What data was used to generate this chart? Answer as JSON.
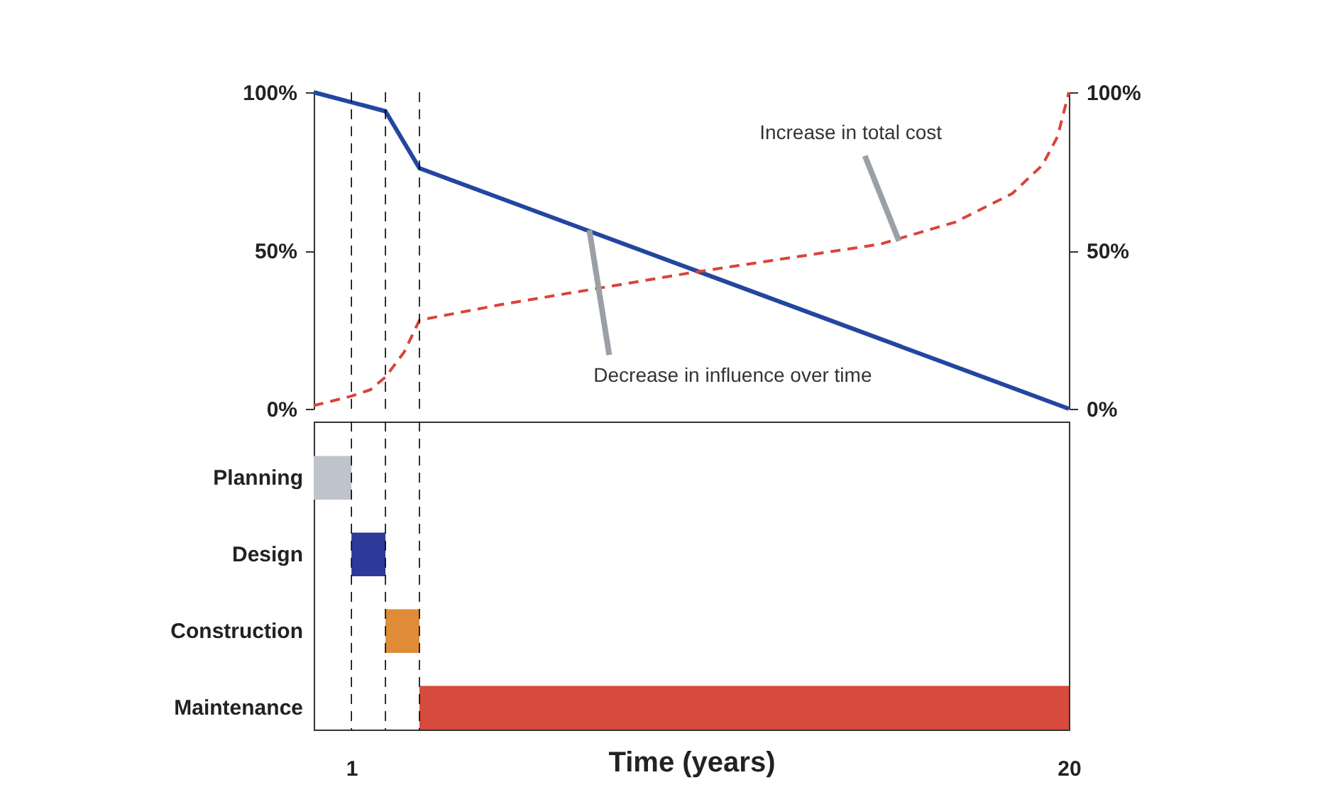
{
  "chart_data": [
    {
      "type": "line",
      "xlim": [
        0,
        20
      ],
      "tick_labels": "y",
      "ylim": [
        0,
        100
      ],
      "yticks": [
        {
          "value": 0,
          "label": "0%"
        },
        {
          "value": 50,
          "label": "50%"
        },
        {
          "value": 100,
          "label": "100%"
        }
      ],
      "y2lim": [
        0,
        100
      ],
      "y2ticks": [
        {
          "value": 0,
          "label": "0%"
        },
        {
          "value": 50,
          "label": "50%"
        },
        {
          "value": 100,
          "label": "100%"
        }
      ],
      "series": [
        {
          "color": "#2346a0",
          "line_style": "solid",
          "x": [
            0,
            1.9,
            2.8,
            20
          ],
          "values": [
            100,
            94,
            76,
            0
          ]
        },
        {
          "color": "#d9443a",
          "line_style": "dashed",
          "axis": "y2",
          "x": [
            0,
            1,
            1.5,
            1.9,
            2.4,
            2.8,
            5,
            10,
            15,
            17,
            18.5,
            19.3,
            19.7,
            20
          ],
          "values": [
            1,
            4,
            6,
            10,
            18,
            28,
            33,
            43,
            52,
            59,
            68,
            77,
            86,
            100
          ]
        }
      ],
      "ref_lines": [
        {
          "axis": "x",
          "value": 1,
          "line_style": "dashed",
          "color": "#000000"
        },
        {
          "axis": "x",
          "value": 1.9,
          "line_style": "dashed",
          "color": "#000000"
        },
        {
          "axis": "x",
          "value": 2.8,
          "line_style": "dashed",
          "color": "#000000"
        }
      ],
      "annotations": [
        {
          "text": "Increase in total cost",
          "x": 15.5,
          "y": 53
        },
        {
          "text": "Decrease in influence over time",
          "x": 7.3,
          "y": 56.5
        }
      ],
      "grid": false
    },
    {
      "type": "bar",
      "orientation": "horizontal",
      "categories": [
        "Planning",
        "Design",
        "Construction",
        "Maintenance"
      ],
      "base": [
        0,
        1,
        1.9,
        2.8
      ],
      "values": [
        1,
        0.9,
        0.9,
        17.2
      ],
      "colors": [
        "#bfc3cb",
        "#2e3a9a",
        "#e08b37",
        "#d64b3e"
      ],
      "xlim": [
        0,
        20
      ],
      "xticks": [
        1,
        20
      ],
      "xlabel": "Time (years)",
      "ref_lines": [
        {
          "axis": "x",
          "value": 1,
          "line_style": "dashed",
          "color": "#000000"
        },
        {
          "axis": "x",
          "value": 1.9,
          "line_style": "dashed",
          "color": "#000000"
        },
        {
          "axis": "x",
          "value": 2.8,
          "line_style": "dashed",
          "color": "#000000"
        }
      ],
      "legend": false,
      "grid": false
    }
  ]
}
